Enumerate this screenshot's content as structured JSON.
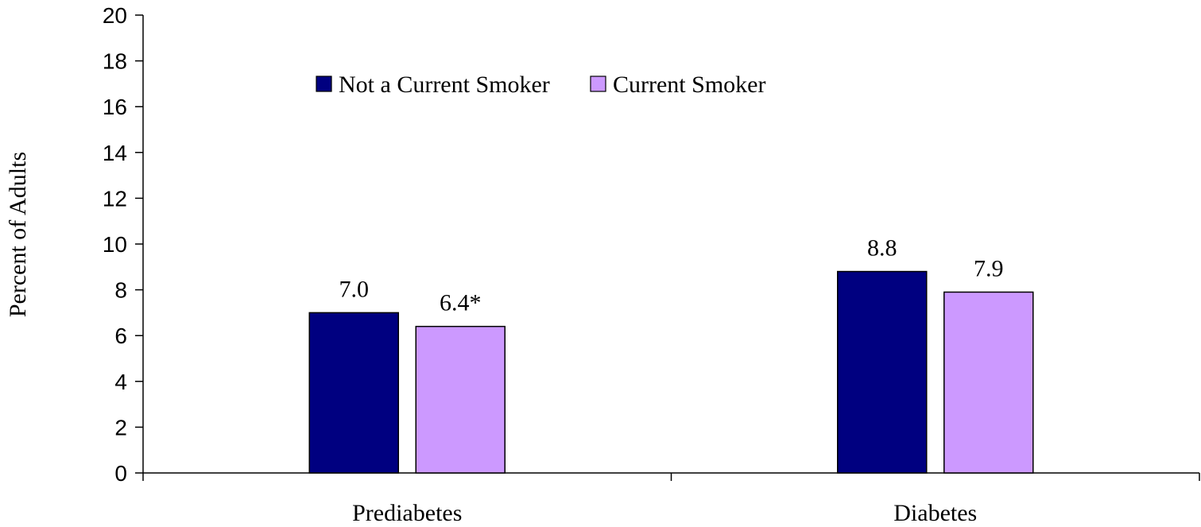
{
  "chart_data": {
    "type": "bar",
    "title": "",
    "xlabel": "",
    "ylabel": "Percent of Adults",
    "ylim": [
      0,
      20
    ],
    "yticks": [
      0,
      2,
      4,
      6,
      8,
      10,
      12,
      14,
      16,
      18,
      20
    ],
    "categories": [
      "Prediabetes",
      "Diabetes"
    ],
    "series": [
      {
        "name": "Not a Current Smoker",
        "color": "#000080",
        "values": [
          7.0,
          8.8
        ],
        "labels": [
          "7.0",
          "8.8"
        ]
      },
      {
        "name": "Current Smoker",
        "color": "#CC99FF",
        "values": [
          6.4,
          7.9
        ],
        "labels": [
          "6.4*",
          "7.9"
        ]
      }
    ],
    "grid": false,
    "legend_position": "top"
  }
}
